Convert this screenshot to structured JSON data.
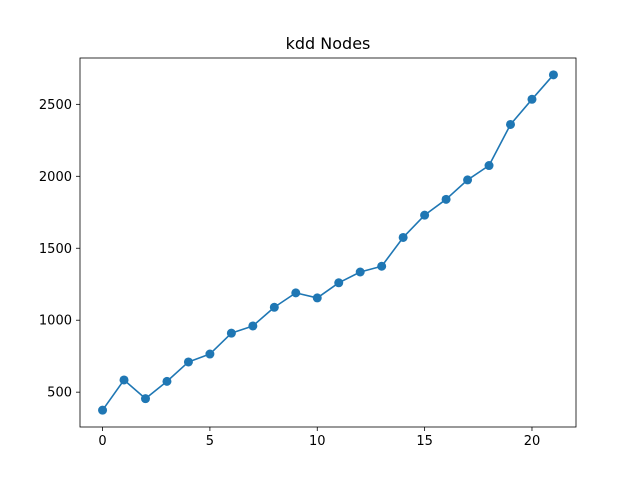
{
  "chart_data": {
    "type": "line",
    "title": "kdd Nodes",
    "xlabel": "",
    "ylabel": "",
    "x": [
      0,
      1,
      2,
      3,
      4,
      5,
      6,
      7,
      8,
      9,
      10,
      11,
      12,
      13,
      14,
      15,
      16,
      17,
      18,
      19,
      20,
      21
    ],
    "series": [
      {
        "values": [
          375,
          585,
          455,
          575,
          710,
          765,
          910,
          960,
          1090,
          1190,
          1155,
          1260,
          1335,
          1375,
          1575,
          1730,
          1840,
          1975,
          2075,
          2360,
          2535,
          2705
        ],
        "color": "#1f77b4",
        "marker": "circle"
      }
    ],
    "xlim": [
      -1.05,
      22.05
    ],
    "ylim": [
      258,
      2822
    ],
    "xticks": [
      0,
      5,
      10,
      15,
      20
    ],
    "yticks": [
      500,
      1000,
      1500,
      2000,
      2500
    ],
    "xtick_labels": [
      "0",
      "5",
      "10",
      "15",
      "20"
    ],
    "ytick_labels": [
      "500",
      "1000",
      "1500",
      "2000",
      "2500"
    ],
    "grid": false,
    "legend": "none"
  }
}
